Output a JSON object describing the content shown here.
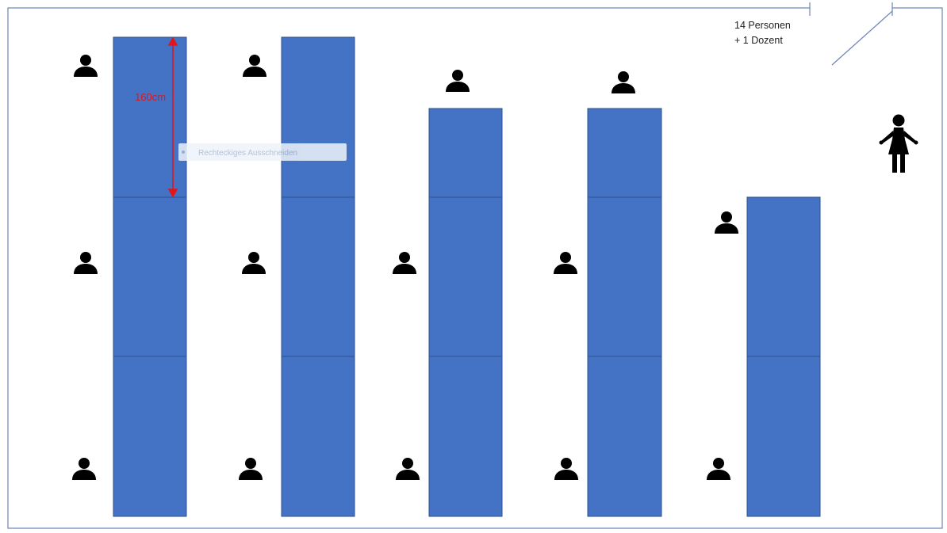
{
  "room": {
    "capacity_line1": "14 Personen",
    "capacity_line2": "+ 1 Dozent"
  },
  "dimension": {
    "label": "160cm"
  },
  "overlay": {
    "tooltip_text": "Rechteckiges Ausschneiden"
  },
  "colors": {
    "table_fill": "#4472C4",
    "table_stroke": "#2F528F",
    "wall": "#6E86B8",
    "dimension": "#E0161B",
    "person": "#000000",
    "tooltip_bg": "#EEF3FB",
    "tooltip_text": "#A9B7CF"
  },
  "layout": {
    "table_rows": 3,
    "table_columns": [
      {
        "tables": 3
      },
      {
        "tables": 3
      },
      {
        "tables": 3
      },
      {
        "tables": 3
      },
      {
        "tables": 2
      }
    ],
    "participants": 14,
    "lecturers": 1
  },
  "icons": {
    "person": "person-icon",
    "lecturer": "lecturer-icon",
    "door": "door-icon"
  }
}
